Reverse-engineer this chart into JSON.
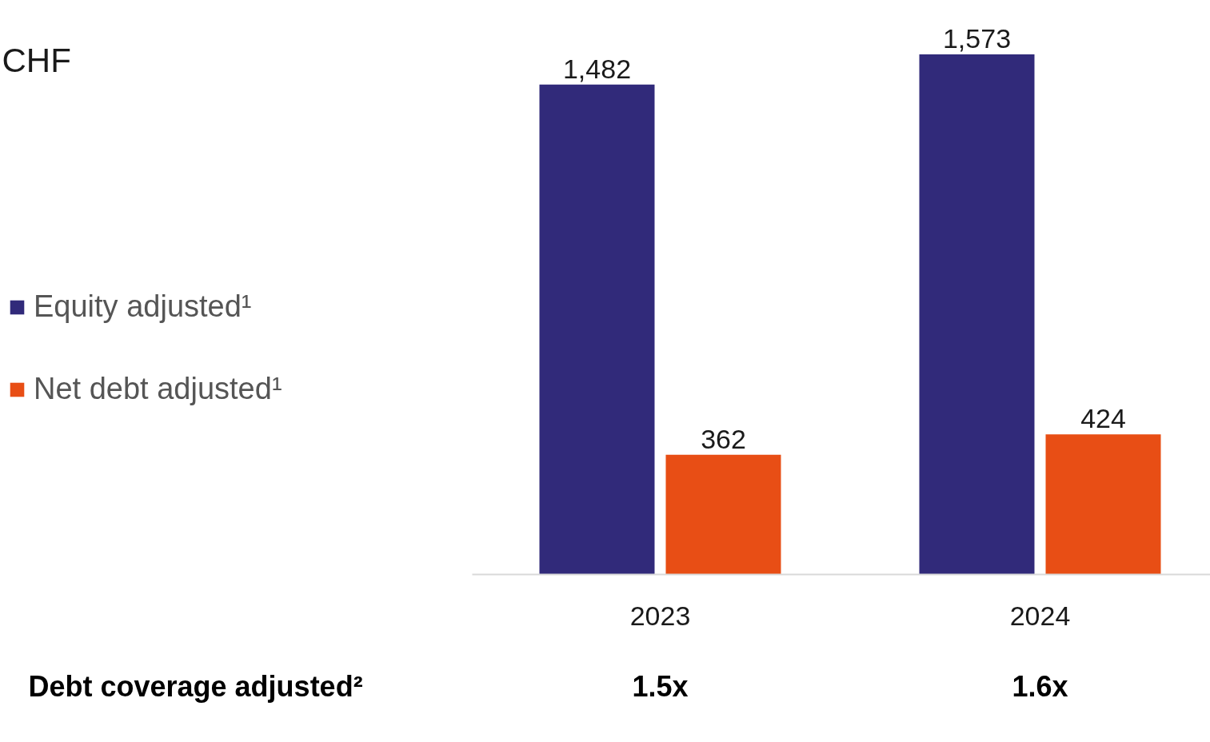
{
  "chart_data": {
    "type": "bar",
    "title": "CHF",
    "categories": [
      "2023",
      "2024"
    ],
    "series": [
      {
        "name": "Equity adjusted¹",
        "color": "#312a7a",
        "values": [
          1482,
          1573
        ],
        "value_labels": [
          "1,482",
          "1,573"
        ]
      },
      {
        "name": "Net debt adjusted¹",
        "color": "#e84e15",
        "values": [
          362,
          424
        ],
        "value_labels": [
          "362",
          "424"
        ]
      }
    ],
    "legend": "left",
    "grid": false,
    "annotations": [
      "Debt coverage adjusted²",
      "1.5x",
      "1.6x"
    ]
  }
}
